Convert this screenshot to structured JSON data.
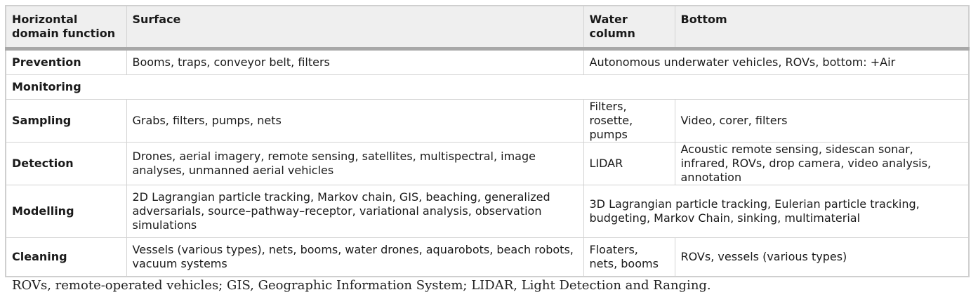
{
  "table": {
    "headers": [
      "Horizontal domain function",
      "Surface",
      "Water column",
      "Bottom"
    ],
    "rows": [
      {
        "label": "Prevention",
        "surface": "Booms, traps, conveyor belt, filters",
        "water_bottom": "Autonomous underwater vehicles, ROVs, bottom: +Air"
      },
      {
        "label": "Monitoring"
      },
      {
        "label": "Sampling",
        "surface": "Grabs, filters, pumps, nets",
        "water": "Filters, rosette, pumps",
        "bottom": "Video, corer, filters"
      },
      {
        "label": "Detection",
        "surface": "Drones, aerial imagery, remote sensing, satellites, multispectral, image analyses, unmanned aerial vehicles",
        "water": "LIDAR",
        "bottom": "Acoustic remote sensing, sidescan sonar, infrared, ROVs, drop camera, video analysis, annotation"
      },
      {
        "label": "Modelling",
        "surface": "2D Lagrangian particle tracking, Markov chain, GIS, beaching, generalized adversarials, source–pathway–receptor, variational analysis, observation simulations",
        "water_bottom": "3D Lagrangian particle tracking, Eulerian particle tracking, budgeting, Markov Chain, sinking, multimaterial"
      },
      {
        "label": "Cleaning",
        "surface": "Vessels (various types), nets, booms, water drones, aquarobots, beach robots, vacuum systems",
        "water": "Floaters, nets, booms",
        "bottom": "ROVs, vessels (various types)"
      }
    ]
  },
  "caption": "ROVs, remote-operated vehicles; GIS, Geographic Information System; LIDAR, Light Detection and Ranging."
}
